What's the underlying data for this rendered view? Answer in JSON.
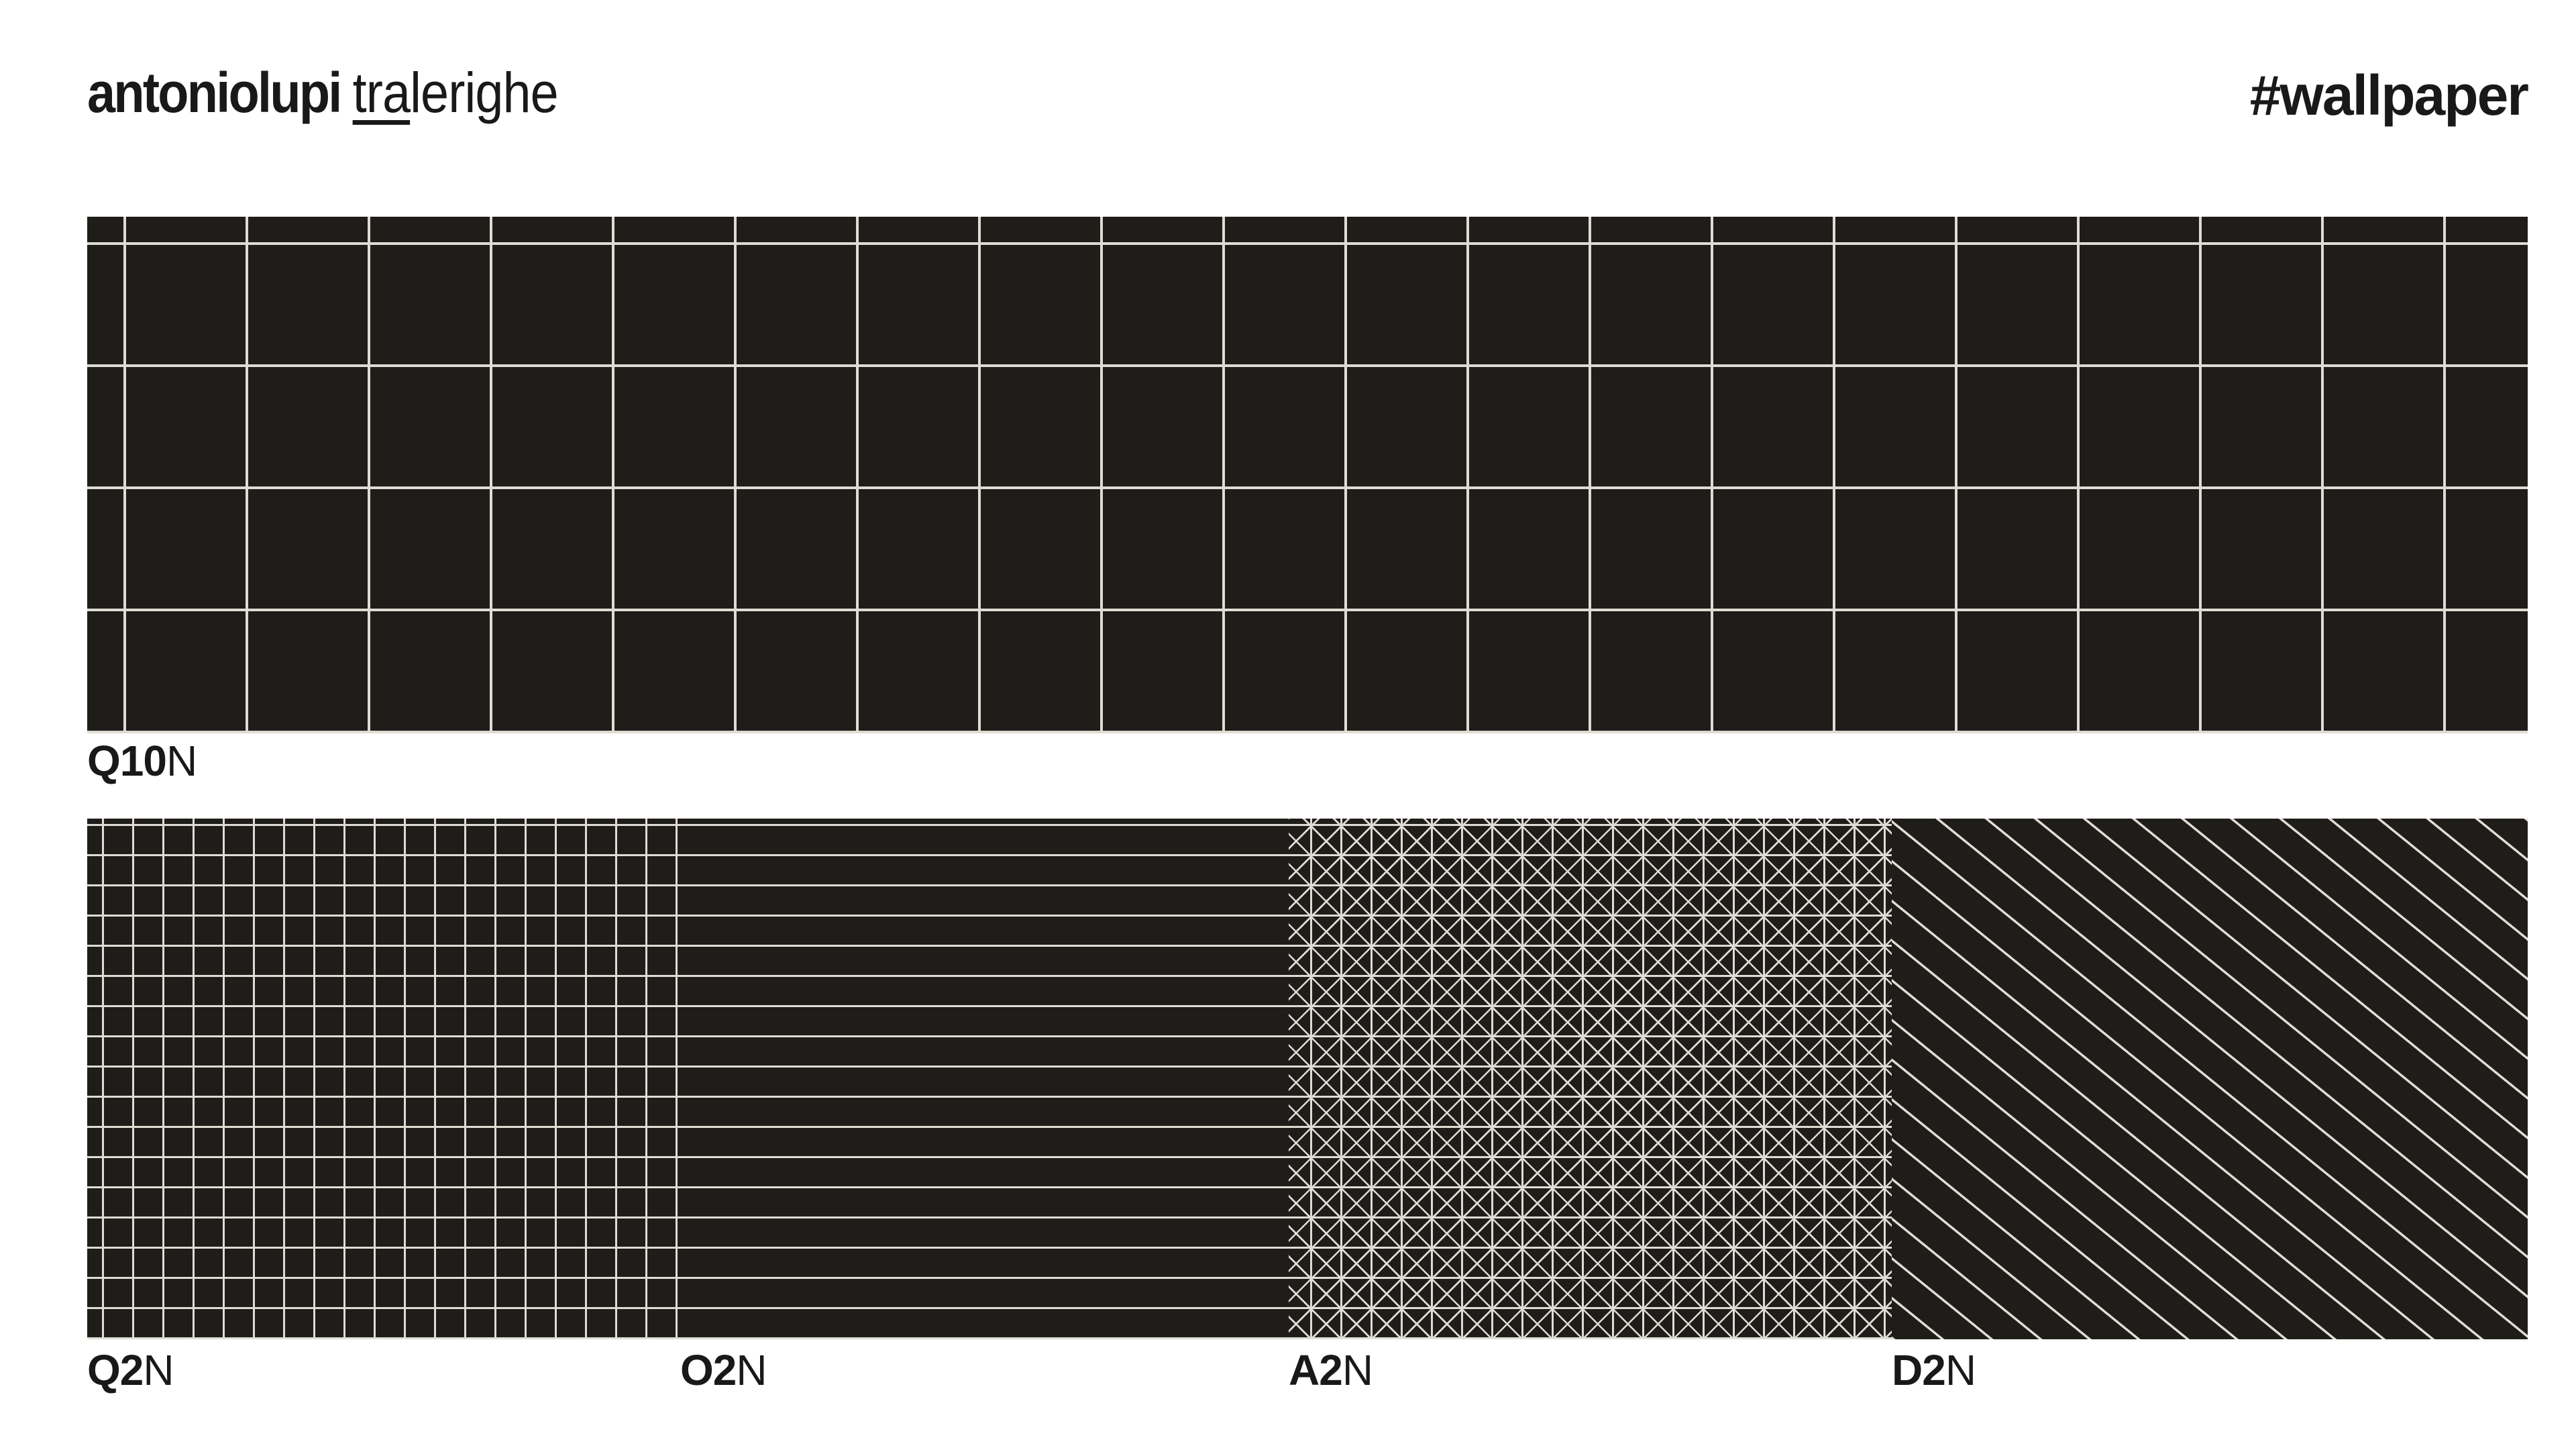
{
  "header": {
    "brand": {
      "bold": "antoniolupi",
      "underlined": "tra",
      "rest": "lerighe"
    },
    "hashtag": "#wallpaper"
  },
  "samples": {
    "large": {
      "code_bold": "Q10",
      "code_suffix": "N",
      "pattern": "large-grid"
    },
    "row": [
      {
        "code_bold": "Q2",
        "code_suffix": "N",
        "pattern": "small-grid"
      },
      {
        "code_bold": "O2",
        "code_suffix": "N",
        "pattern": "horizontal-lines"
      },
      {
        "code_bold": "A2",
        "code_suffix": "N",
        "pattern": "crosshatch-grid"
      },
      {
        "code_bold": "D2",
        "code_suffix": "N",
        "pattern": "diagonal-lines"
      }
    ]
  },
  "colors": {
    "page_bg": "#ffffff",
    "panel_bg": "#1f1d1a",
    "line": "#dfdcd4",
    "text": "#191918"
  }
}
